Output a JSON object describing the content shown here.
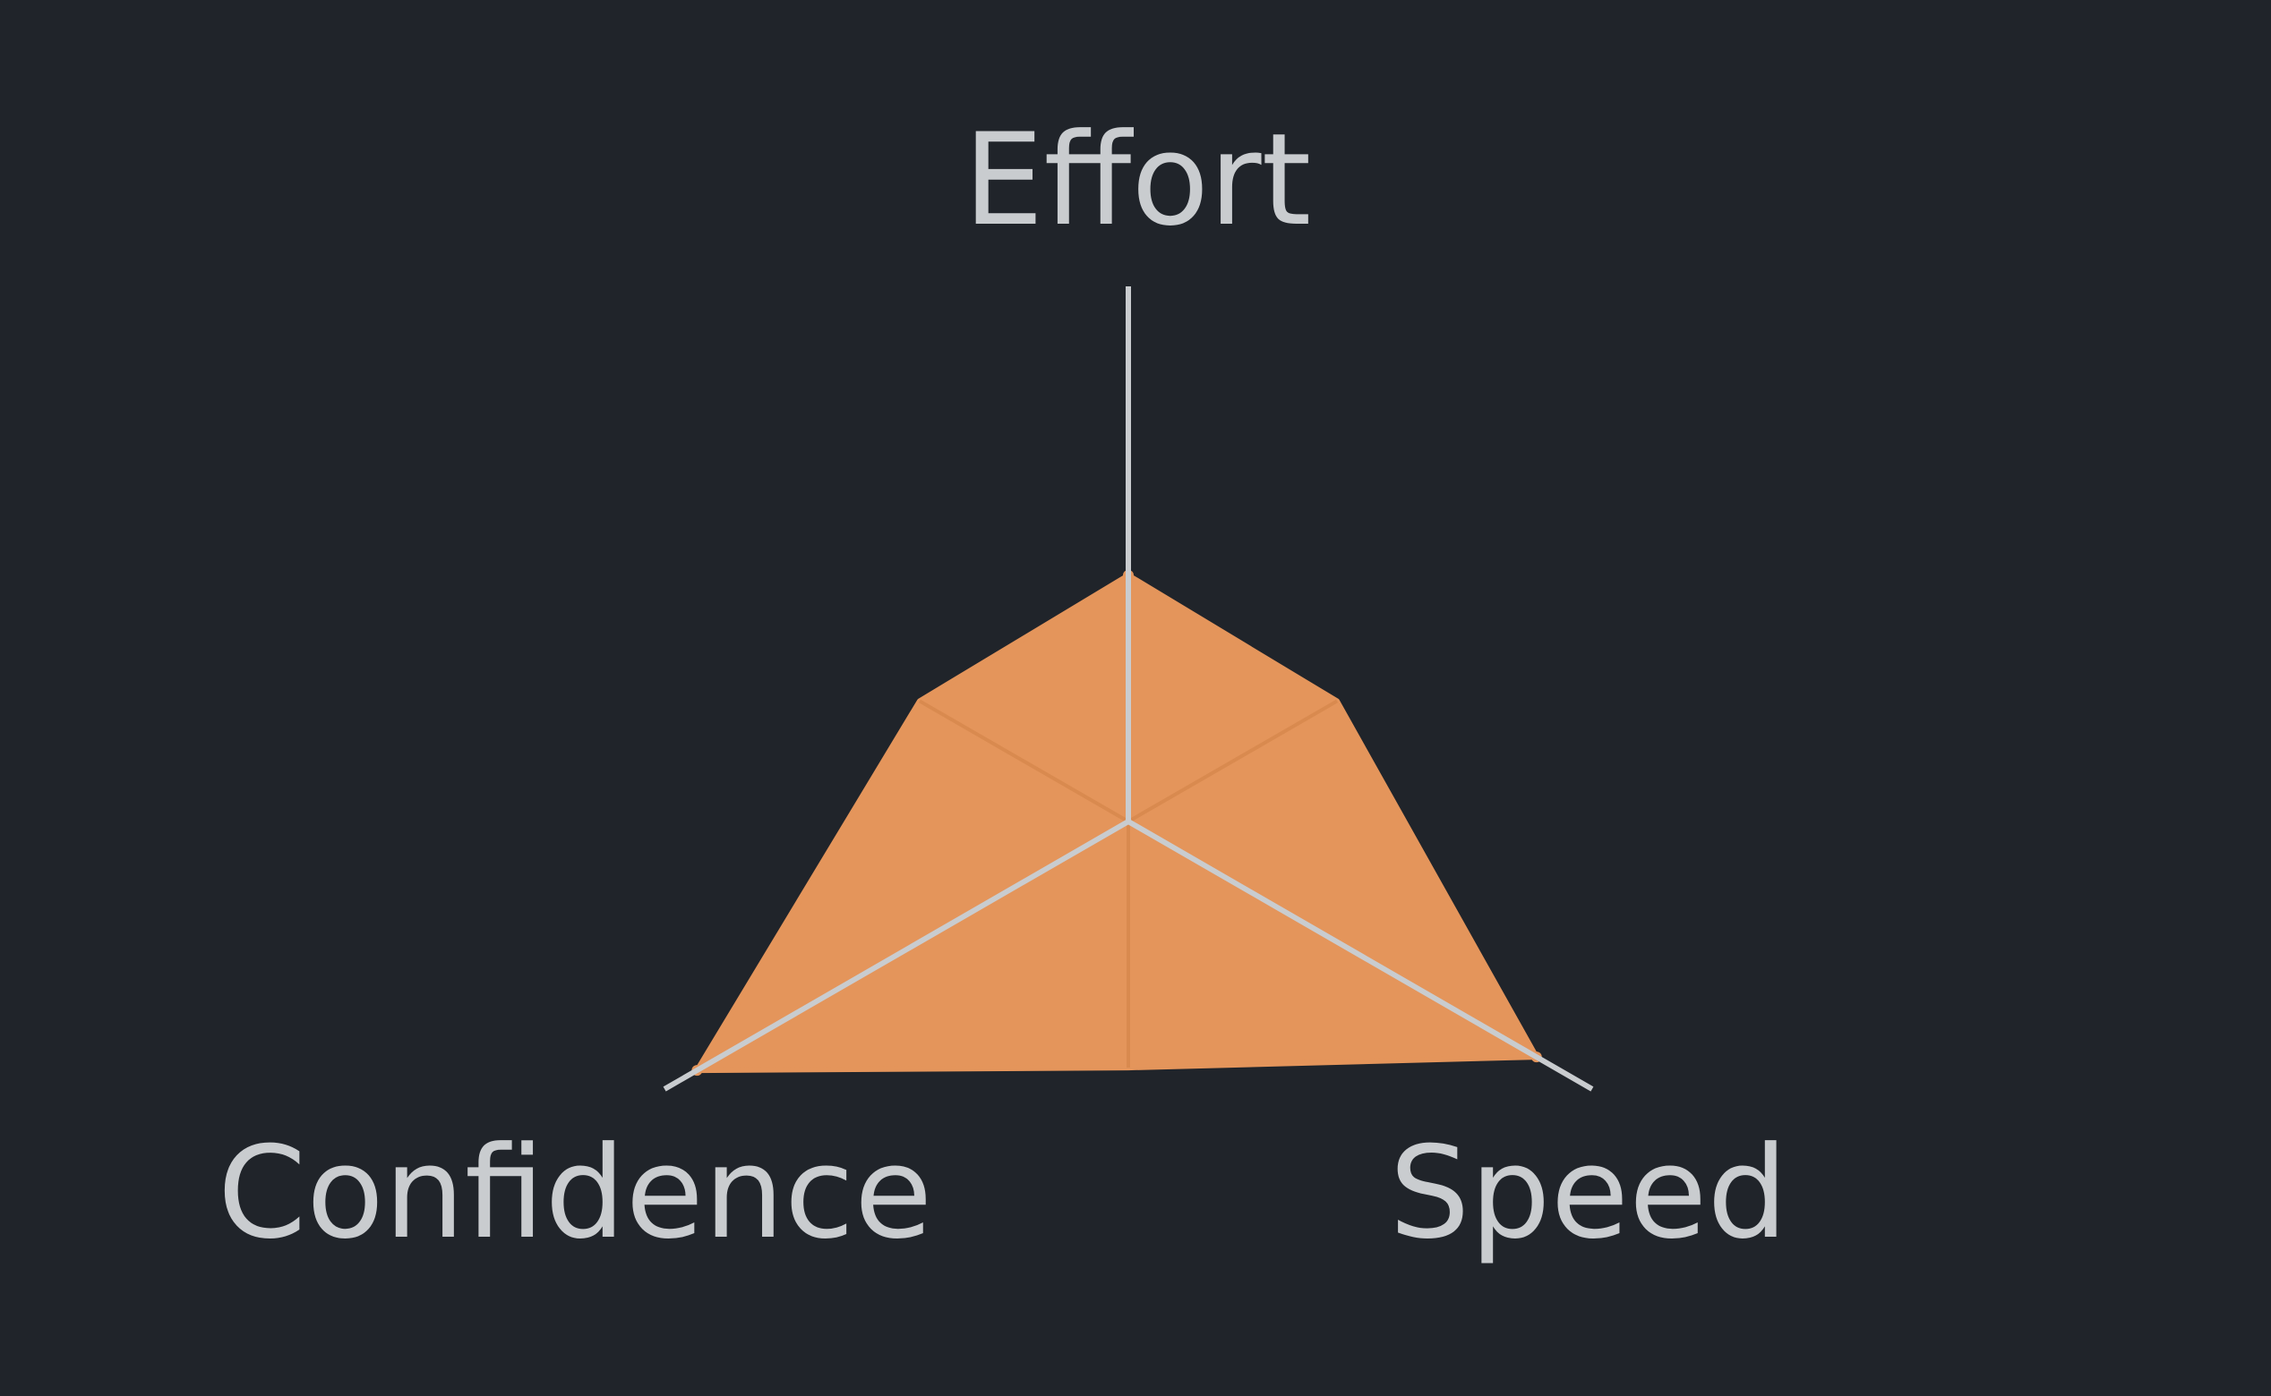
{
  "chart_data": {
    "type": "radar",
    "axes": [
      {
        "label": "Effort",
        "max": 1.0
      },
      {
        "label": "Speed",
        "max": 1.0
      },
      {
        "label": "Confidence",
        "max": 1.0
      }
    ],
    "series": [
      {
        "values": [
          0.46,
          0.88,
          0.93
        ],
        "color": "#e4955b",
        "intermediate_values": [
          0.45,
          0.46,
          0.45
        ]
      }
    ],
    "grid": false,
    "legend": "none"
  },
  "colors": {
    "background": "#20242a",
    "axis": "#c9cccf",
    "label": "#c9cccf",
    "fill": "#e4955b"
  }
}
